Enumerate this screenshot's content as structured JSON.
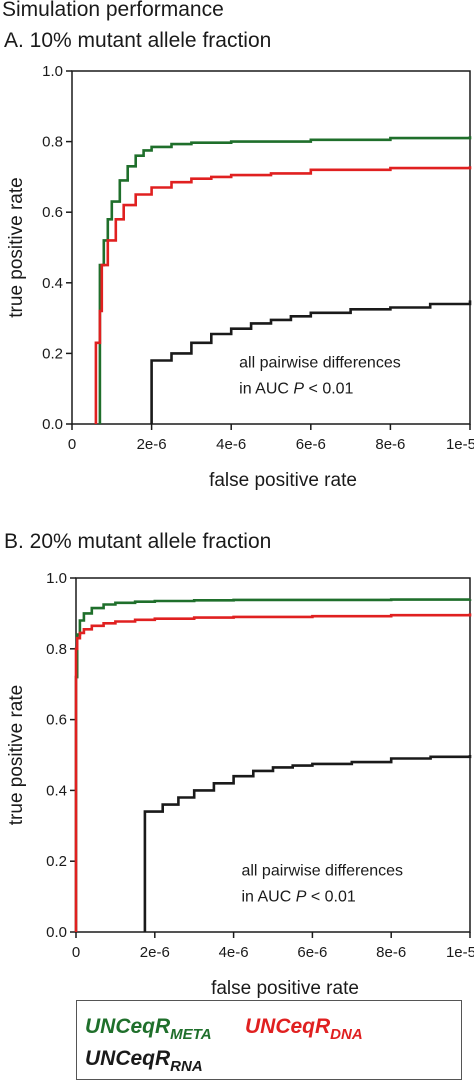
{
  "figure_title": "Simulation performance",
  "panels": [
    {
      "label": "A. 10% mutant allele fraction",
      "annotation_line1": "all pairwise differences",
      "annotation_line2_text": "in AUC  ",
      "annotation_line2_p": "P",
      "annotation_line2_rest": " < 0.01"
    },
    {
      "label": "B. 20% mutant allele fraction",
      "annotation_line1": "all pairwise differences",
      "annotation_line2_text": "in AUC  ",
      "annotation_line2_p": "P",
      "annotation_line2_rest": " < 0.01"
    }
  ],
  "legend": {
    "meta": {
      "main": "UNCeqR",
      "sub": "META"
    },
    "dna": {
      "main": "UNCeqR",
      "sub": "DNA"
    },
    "rna": {
      "main": "UNCeqR",
      "sub": "RNA"
    }
  },
  "colors": {
    "meta": "#1f6f2b",
    "dna": "#e02020",
    "rna": "#1a1a1a",
    "axis": "#1a1a1a"
  },
  "chart_data": [
    {
      "type": "line",
      "title": "A. 10% mutant allele fraction",
      "xlabel": "false positive rate",
      "ylabel": "true positive rate",
      "xlim": [
        0,
        1e-05
      ],
      "ylim": [
        0,
        1.0
      ],
      "x_tick_labels": [
        "0",
        "2e-6",
        "4e-6",
        "6e-6",
        "8e-6",
        "1e-5"
      ],
      "y_tick_labels": [
        "0.0",
        "0.2",
        "0.4",
        "0.6",
        "0.8",
        "1.0"
      ],
      "series": [
        {
          "key": "meta",
          "name": "UNCeqR META",
          "x": [
            7e-07,
            7e-07,
            8e-07,
            9e-07,
            1e-06,
            1.2e-06,
            1.4e-06,
            1.6e-06,
            1.8e-06,
            2e-06,
            2.5e-06,
            3e-06,
            4e-06,
            5e-06,
            6e-06,
            8e-06,
            1e-05
          ],
          "y": [
            0.0,
            0.45,
            0.52,
            0.58,
            0.63,
            0.69,
            0.73,
            0.76,
            0.775,
            0.785,
            0.793,
            0.797,
            0.8,
            0.8,
            0.805,
            0.81,
            0.815
          ]
        },
        {
          "key": "dna",
          "name": "UNCeqR DNA",
          "x": [
            6e-07,
            6e-07,
            7e-07,
            7.5e-07,
            9e-07,
            1.1e-06,
            1.3e-06,
            1.6e-06,
            2e-06,
            2.5e-06,
            3e-06,
            3.5e-06,
            4e-06,
            5e-06,
            6e-06,
            8e-06,
            1e-05
          ],
          "y": [
            0.0,
            0.23,
            0.32,
            0.45,
            0.52,
            0.58,
            0.62,
            0.65,
            0.67,
            0.685,
            0.695,
            0.7,
            0.705,
            0.71,
            0.72,
            0.725,
            0.73
          ]
        },
        {
          "key": "rna",
          "name": "UNCeqR RNA",
          "x": [
            2e-06,
            2e-06,
            2.5e-06,
            3e-06,
            3.5e-06,
            4e-06,
            4.5e-06,
            5e-06,
            5.5e-06,
            6e-06,
            7e-06,
            8e-06,
            9e-06,
            1e-05
          ],
          "y": [
            0.0,
            0.18,
            0.2,
            0.23,
            0.255,
            0.27,
            0.285,
            0.295,
            0.305,
            0.315,
            0.325,
            0.33,
            0.34,
            0.35
          ]
        }
      ]
    },
    {
      "type": "line",
      "title": "B. 20% mutant allele fraction",
      "xlabel": "false positive rate",
      "ylabel": "true positive rate",
      "xlim": [
        0,
        1e-05
      ],
      "ylim": [
        0,
        1.0
      ],
      "x_tick_labels": [
        "0",
        "2e-6",
        "4e-6",
        "6e-6",
        "8e-6",
        "1e-5"
      ],
      "y_tick_labels": [
        "0.0",
        "0.2",
        "0.4",
        "0.6",
        "0.8",
        "1.0"
      ],
      "series": [
        {
          "key": "meta",
          "name": "UNCeqR META",
          "x": [
            0,
            0,
            3e-08,
            1e-07,
            2e-07,
            4e-07,
            7e-07,
            1e-06,
            1.5e-06,
            2e-06,
            3e-06,
            4e-06,
            6e-06,
            8e-06,
            1e-05
          ],
          "y": [
            0.0,
            0.72,
            0.84,
            0.88,
            0.9,
            0.915,
            0.925,
            0.93,
            0.933,
            0.935,
            0.937,
            0.938,
            0.938,
            0.939,
            0.94
          ]
        },
        {
          "key": "dna",
          "name": "UNCeqR DNA",
          "x": [
            0,
            0,
            3e-08,
            1e-07,
            2e-07,
            4e-07,
            7e-07,
            1e-06,
            1.5e-06,
            2e-06,
            3e-06,
            4e-06,
            6e-06,
            8e-06,
            1e-05
          ],
          "y": [
            0.0,
            0.8,
            0.83,
            0.845,
            0.855,
            0.865,
            0.872,
            0.877,
            0.882,
            0.885,
            0.888,
            0.89,
            0.892,
            0.895,
            0.9
          ]
        },
        {
          "key": "rna",
          "name": "UNCeqR RNA",
          "x": [
            1.75e-06,
            1.75e-06,
            2.2e-06,
            2.6e-06,
            3e-06,
            3.5e-06,
            4e-06,
            4.5e-06,
            5e-06,
            5.5e-06,
            6e-06,
            7e-06,
            8e-06,
            9e-06,
            1e-05
          ],
          "y": [
            0.0,
            0.34,
            0.36,
            0.38,
            0.4,
            0.42,
            0.44,
            0.455,
            0.465,
            0.47,
            0.475,
            0.48,
            0.49,
            0.495,
            0.5
          ]
        }
      ]
    }
  ]
}
